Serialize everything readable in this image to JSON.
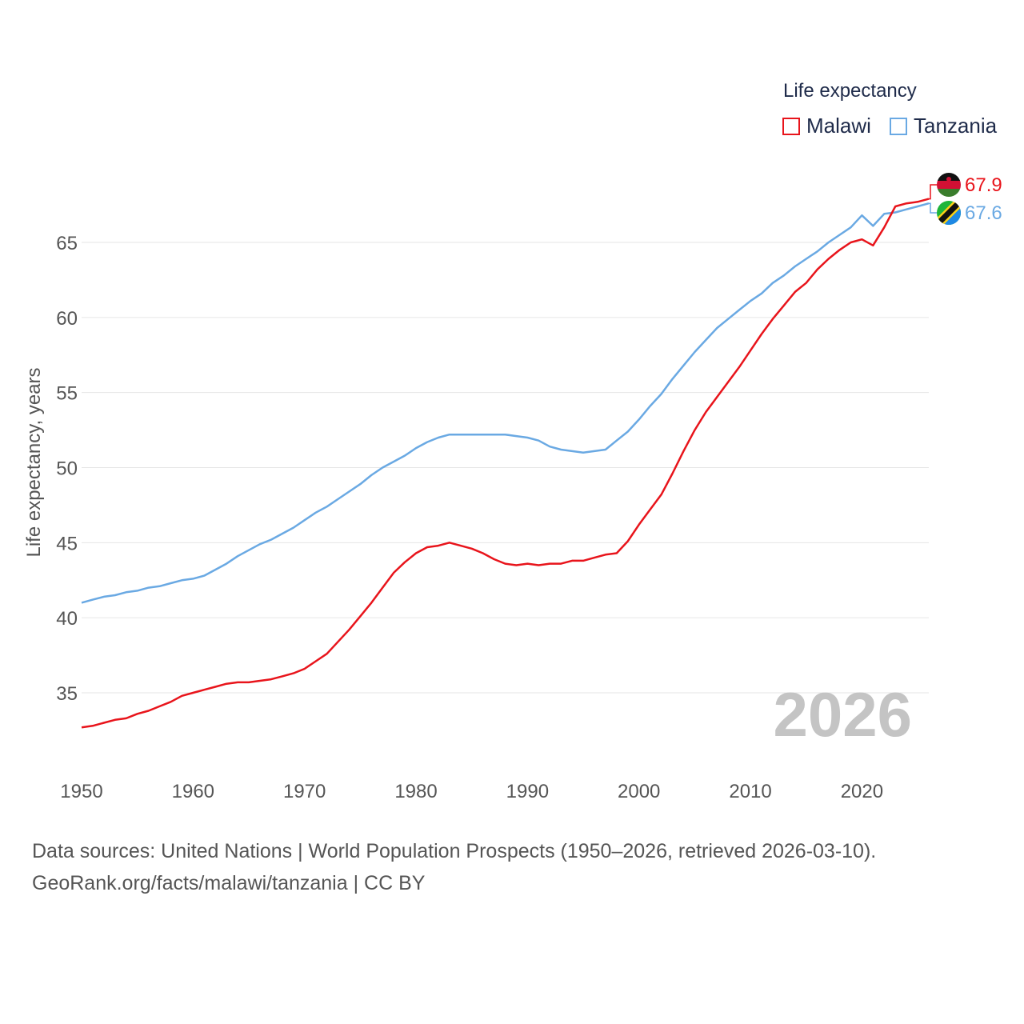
{
  "legend": {
    "title": "Life expectancy",
    "items": [
      {
        "label": "Malawi",
        "color": "#e8141b"
      },
      {
        "label": "Tanzania",
        "color": "#6aa9e3"
      }
    ]
  },
  "year_watermark": "2026",
  "sources": {
    "line1": "Data sources: United Nations | World Population Prospects (1950–2026, retrieved 2026-03-10).",
    "line2": "GeoRank.org/facts/malawi/tanzania | CC BY"
  },
  "chart_data": {
    "type": "line",
    "title": "Life expectancy",
    "xlabel": "",
    "ylabel": "Life expectancy, years",
    "xlim": [
      1950,
      2026
    ],
    "ylim": [
      31,
      69
    ],
    "x_ticks": [
      1950,
      1960,
      1970,
      1980,
      1990,
      2000,
      2010,
      2020
    ],
    "y_ticks": [
      35,
      40,
      45,
      50,
      55,
      60,
      65
    ],
    "grid": true,
    "legend_position": "top-right",
    "x": [
      1950,
      1951,
      1952,
      1953,
      1954,
      1955,
      1956,
      1957,
      1958,
      1959,
      1960,
      1961,
      1962,
      1963,
      1964,
      1965,
      1966,
      1967,
      1968,
      1969,
      1970,
      1971,
      1972,
      1973,
      1974,
      1975,
      1976,
      1977,
      1978,
      1979,
      1980,
      1981,
      1982,
      1983,
      1984,
      1985,
      1986,
      1987,
      1988,
      1989,
      1990,
      1991,
      1992,
      1993,
      1994,
      1995,
      1996,
      1997,
      1998,
      1999,
      2000,
      2001,
      2002,
      2003,
      2004,
      2005,
      2006,
      2007,
      2008,
      2009,
      2010,
      2011,
      2012,
      2013,
      2014,
      2015,
      2016,
      2017,
      2018,
      2019,
      2020,
      2021,
      2022,
      2023,
      2024,
      2025,
      2026
    ],
    "series": [
      {
        "name": "Malawi",
        "color": "#e8141b",
        "end_label": "67.9",
        "values": [
          32.7,
          32.8,
          33.0,
          33.2,
          33.3,
          33.6,
          33.8,
          34.1,
          34.4,
          34.8,
          35.0,
          35.2,
          35.4,
          35.6,
          35.7,
          35.7,
          35.8,
          35.9,
          36.1,
          36.3,
          36.6,
          37.1,
          37.6,
          38.4,
          39.2,
          40.1,
          41.0,
          42.0,
          43.0,
          43.7,
          44.3,
          44.7,
          44.8,
          45.0,
          44.8,
          44.6,
          44.3,
          43.9,
          43.6,
          43.5,
          43.6,
          43.5,
          43.6,
          43.6,
          43.8,
          43.8,
          44.0,
          44.2,
          44.3,
          45.1,
          46.2,
          47.2,
          48.2,
          49.6,
          51.1,
          52.5,
          53.7,
          54.7,
          55.7,
          56.7,
          57.8,
          58.9,
          59.9,
          60.8,
          61.7,
          62.3,
          63.2,
          63.9,
          64.5,
          65.0,
          65.2,
          64.8,
          66.0,
          67.4,
          67.6,
          67.7,
          67.9
        ]
      },
      {
        "name": "Tanzania",
        "color": "#6aa9e3",
        "end_label": "67.6",
        "values": [
          41.0,
          41.2,
          41.4,
          41.5,
          41.7,
          41.8,
          42.0,
          42.1,
          42.3,
          42.5,
          42.6,
          42.8,
          43.2,
          43.6,
          44.1,
          44.5,
          44.9,
          45.2,
          45.6,
          46.0,
          46.5,
          47.0,
          47.4,
          47.9,
          48.4,
          48.9,
          49.5,
          50.0,
          50.4,
          50.8,
          51.3,
          51.7,
          52.0,
          52.2,
          52.2,
          52.2,
          52.2,
          52.2,
          52.2,
          52.1,
          52.0,
          51.8,
          51.4,
          51.2,
          51.1,
          51.0,
          51.1,
          51.2,
          51.8,
          52.4,
          53.2,
          54.1,
          54.9,
          55.9,
          56.8,
          57.7,
          58.5,
          59.3,
          59.9,
          60.5,
          61.1,
          61.6,
          62.3,
          62.8,
          63.4,
          63.9,
          64.4,
          65.0,
          65.5,
          66.0,
          66.8,
          66.1,
          66.9,
          67.0,
          67.2,
          67.4,
          67.6
        ]
      }
    ]
  }
}
